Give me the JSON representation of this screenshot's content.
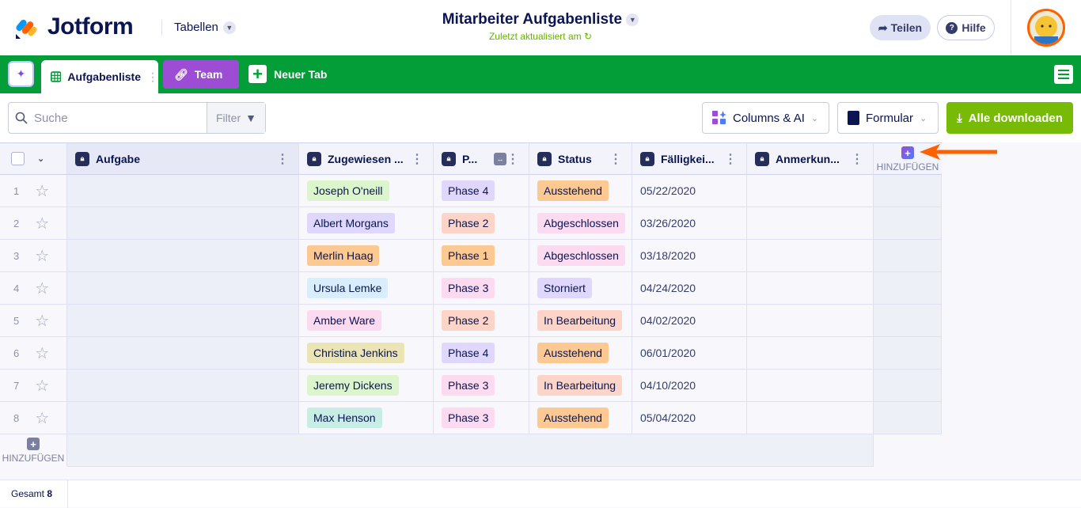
{
  "header": {
    "logo": "Jotform",
    "product": "Tabellen",
    "title": "Mitarbeiter Aufgabenliste",
    "subtitle": "Zuletzt aktualisiert am",
    "share": "Teilen",
    "help": "Hilfe"
  },
  "tabs": [
    {
      "label": "Aufgabenliste",
      "icon": "table-icon"
    },
    {
      "label": "Team",
      "icon": "link-icon"
    },
    {
      "label": "Neuer Tab",
      "icon": "plus-icon"
    }
  ],
  "toolbar": {
    "search_placeholder": "Suche",
    "filter": "Filter",
    "columns_ai": "Columns & AI",
    "form": "Formular",
    "download": "Alle downloaden"
  },
  "columns": [
    "Aufgabe",
    "Zugewiesen ...",
    "P...",
    "Status",
    "Fälligkei...",
    "Anmerkun..."
  ],
  "add_label": "HINZUFÜGEN",
  "rows": [
    {
      "n": "1",
      "name": "Joseph O'neill",
      "phase": "Phase 4",
      "status": "Ausstehend",
      "date": "05/22/2020"
    },
    {
      "n": "2",
      "name": "Albert Morgans",
      "phase": "Phase 2",
      "status": "Abgeschlossen",
      "date": "03/26/2020"
    },
    {
      "n": "3",
      "name": "Merlin Haag",
      "phase": "Phase 1",
      "status": "Abgeschlossen",
      "date": "03/18/2020"
    },
    {
      "n": "4",
      "name": "Ursula Lemke",
      "phase": "Phase 3",
      "status": "Storniert",
      "date": "04/24/2020"
    },
    {
      "n": "5",
      "name": "Amber Ware",
      "phase": "Phase 2",
      "status": "In Bearbeitung",
      "date": "04/02/2020"
    },
    {
      "n": "6",
      "name": "Christina Jenkins",
      "phase": "Phase 4",
      "status": "Ausstehend",
      "date": "06/01/2020"
    },
    {
      "n": "7",
      "name": "Jeremy Dickens",
      "phase": "Phase 3",
      "status": "In Bearbeitung",
      "date": "04/10/2020"
    },
    {
      "n": "8",
      "name": "Max Henson",
      "phase": "Phase 3",
      "status": "Ausstehend",
      "date": "05/04/2020"
    }
  ],
  "name_colors": [
    "#dcf5cc",
    "#e0d7fc",
    "#fcc993",
    "#d9eefc",
    "#fcdaf0",
    "#ebe5b5",
    "#dcf5cc",
    "#c8ede5"
  ],
  "tag_colors": {
    "Phase 1": "#fcc993",
    "Phase 2": "#fcd5c8",
    "Phase 3": "#fcdaf0",
    "Phase 4": "#e0d7fc",
    "Ausstehend": "#fcc993",
    "Abgeschlossen": "#fcdaf0",
    "Storniert": "#e0d7fc",
    "In Bearbeitung": "#fcd5c8"
  },
  "footer": {
    "label": "Gesamt",
    "count": "8"
  },
  "colors": {
    "green": "#049e38",
    "purple": "#9c4dd3",
    "download": "#78bb07",
    "arrow": "#ff6100"
  }
}
